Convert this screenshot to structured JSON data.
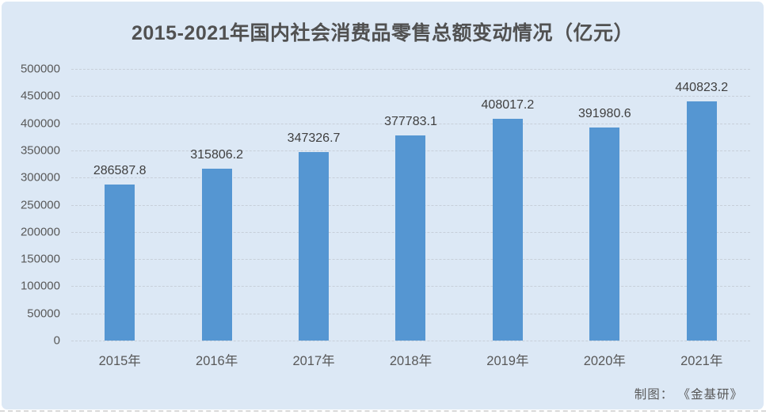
{
  "chart": {
    "attribution": "制图： 《金基研》"
  },
  "chart_data": {
    "type": "bar",
    "title": "2015-2021年国内社会消费品零售总额变动情况（亿元）",
    "categories": [
      "2015年",
      "2016年",
      "2017年",
      "2018年",
      "2019年",
      "2020年",
      "2021年"
    ],
    "values": [
      286587.8,
      315806.2,
      347326.7,
      377783.1,
      408017.2,
      391980.6,
      440823.2
    ],
    "value_labels": [
      "286587.8",
      "315806.2",
      "347326.7",
      "377783.1",
      "408017.2",
      "391980.6",
      "440823.2"
    ],
    "y_ticks": [
      0,
      50000,
      100000,
      150000,
      200000,
      250000,
      300000,
      350000,
      400000,
      450000,
      500000
    ],
    "ylim": [
      0,
      500000
    ],
    "xlabel": "",
    "ylabel": "",
    "grid": true,
    "legend": false,
    "bar_color": "#5596d2",
    "panel_background": "#dce8f5",
    "title_color": "#515151",
    "label_color": "#595959"
  }
}
